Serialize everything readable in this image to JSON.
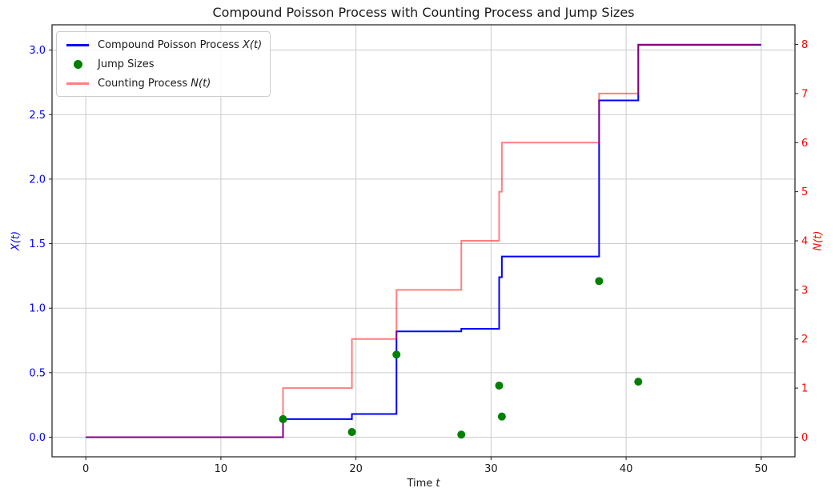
{
  "figure": {
    "title": "Compound Poisson Process with Counting Process and Jump Sizes"
  },
  "axes": {
    "xlabel_prefix": "Time ",
    "xlabel_math": "t",
    "ylabel_left": "X(t)",
    "ylabel_right": "N(t)",
    "left_axis_color": "#0000ff",
    "right_axis_color": "#ff0000"
  },
  "legend": {
    "items": [
      {
        "prefix": "Compound Poisson Process ",
        "math": "X(t)",
        "marker": "line",
        "color": "#0000ff"
      },
      {
        "prefix": "Jump Sizes",
        "math": "",
        "marker": "dot",
        "color": "#008000"
      },
      {
        "prefix": "Counting Process ",
        "math": "N(t)",
        "marker": "line",
        "color": "#ff8080"
      }
    ]
  },
  "chart_data": {
    "type": "line",
    "title": "Compound Poisson Process with Counting Process and Jump Sizes",
    "xlabel": "Time t",
    "ylabel_left": "X(t)",
    "ylabel_right": "N(t)",
    "xlim": [
      -2.5,
      52.5
    ],
    "ylim_left": [
      -0.152,
      3.196
    ],
    "ylim_right": [
      -0.4,
      8.4
    ],
    "x_ticks": [
      0,
      10,
      20,
      30,
      40,
      50
    ],
    "y_ticks_left": [
      0.0,
      0.5,
      1.0,
      1.5,
      2.0,
      2.5,
      3.0
    ],
    "y_ticks_right": [
      0,
      1,
      2,
      3,
      4,
      5,
      6,
      7,
      8
    ],
    "grid": true,
    "legend_position": "upper left",
    "event_times": [
      14.6,
      19.7,
      23.0,
      27.8,
      30.6,
      30.8,
      38.0,
      40.9
    ],
    "jump_sizes": [
      0.14,
      0.04,
      0.64,
      0.02,
      0.4,
      0.16,
      1.21,
      0.43
    ],
    "series": [
      {
        "name": "Compound Poisson Process X(t)",
        "type": "step-post",
        "axis": "left",
        "color": "#0000ff",
        "opacity": 1,
        "x": [
          0,
          14.6,
          19.7,
          23.0,
          27.8,
          30.6,
          30.8,
          38.0,
          40.9,
          50
        ],
        "y": [
          0,
          0.14,
          0.18,
          0.82,
          0.84,
          1.24,
          1.4,
          2.61,
          3.04,
          3.04
        ]
      },
      {
        "name": "Counting Process N(t)",
        "type": "step-post",
        "axis": "right",
        "color": "#ff0000",
        "opacity": 0.5,
        "x": [
          0,
          14.6,
          19.7,
          23.0,
          27.8,
          30.6,
          30.8,
          38.0,
          40.9,
          50
        ],
        "y": [
          0,
          1,
          2,
          3,
          4,
          5,
          6,
          7,
          8,
          8
        ]
      },
      {
        "name": "Jump Sizes",
        "type": "scatter",
        "axis": "left",
        "color": "#008000",
        "opacity": 1,
        "x": [
          14.6,
          19.7,
          23.0,
          27.8,
          30.6,
          30.8,
          38.0,
          40.9
        ],
        "y": [
          0.14,
          0.04,
          0.64,
          0.02,
          0.4,
          0.16,
          1.21,
          0.43
        ]
      }
    ]
  }
}
